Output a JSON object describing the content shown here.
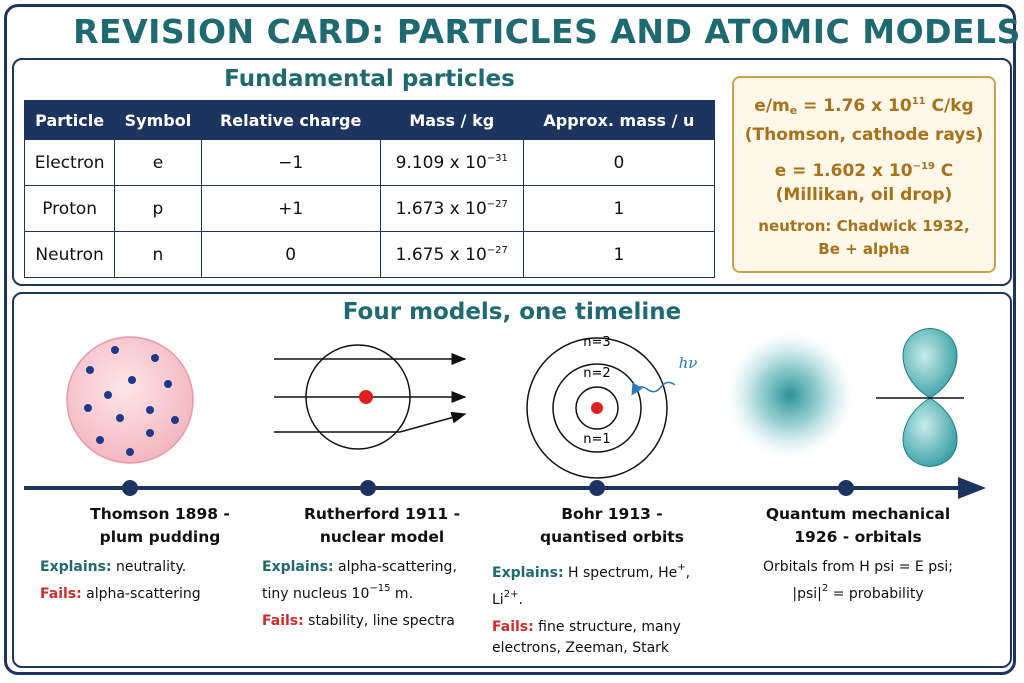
{
  "header": {
    "title": "REVISION CARD: PARTICLES AND ATOMIC MODELS"
  },
  "particles": {
    "title": "Fundamental particles",
    "table": {
      "headers": [
        "Particle",
        "Symbol",
        "Relative charge",
        "Mass / kg",
        "Approx. mass / u"
      ],
      "rows": [
        [
          "Electron",
          "e",
          "−1",
          [
            {
              "text": "9.109 x 10"
            },
            {
              "sup": "−31"
            }
          ],
          "0"
        ],
        [
          "Proton",
          "p",
          "+1",
          [
            {
              "text": "1.673 x 10"
            },
            {
              "sup": "−27"
            }
          ],
          "1"
        ],
        [
          "Neutron",
          "n",
          "0",
          [
            {
              "text": "1.675 x 10"
            },
            {
              "sup": "−27"
            }
          ],
          "1"
        ]
      ]
    }
  },
  "constants": [
    [
      {
        "text": "e/m"
      },
      {
        "sub": "e"
      },
      {
        "text": " = 1.76 x 10"
      },
      {
        "sup": "11"
      },
      {
        "text": " C/kg"
      }
    ],
    [
      {
        "text": "(Thomson, cathode rays)"
      }
    ],
    [
      {
        "text": "e = 1.602 x 10"
      },
      {
        "sup": "−19"
      },
      {
        "text": " C"
      }
    ],
    [
      {
        "text": "(Millikan, oil drop)"
      }
    ],
    [
      {
        "text": "neutron: Chadwick 1932,"
      }
    ],
    [
      {
        "text": "Be + alpha"
      }
    ]
  ],
  "timeline": {
    "title": "Four models, one timeline",
    "diagram_labels": {
      "bohr": [
        "n=3",
        "n=2",
        "n=1"
      ],
      "photon": "hν"
    },
    "models": [
      {
        "title": [
          "Thomson 1898 -",
          "plum pudding"
        ],
        "notes": [
          {
            "label": "Explains:",
            "lines": [
              [
                {
                  "text": " neutrality."
                }
              ]
            ]
          },
          {
            "label": "Fails:",
            "lines": [
              [
                {
                  "text": " alpha-scattering"
                }
              ]
            ]
          }
        ]
      },
      {
        "title": [
          "Rutherford 1911 -",
          "nuclear model"
        ],
        "notes": [
          {
            "label": "Explains:",
            "lines": [
              [
                {
                  "text": " alpha-scattering,"
                }
              ],
              [
                {
                  "text": "tiny nucleus 10"
                },
                {
                  "sup": "−15"
                },
                {
                  "text": " m."
                }
              ]
            ]
          },
          {
            "label": "Fails:",
            "lines": [
              [
                {
                  "text": " stability, line spectra"
                }
              ]
            ]
          }
        ]
      },
      {
        "title": [
          "Bohr 1913 -",
          "quantised orbits"
        ],
        "notes": [
          {
            "label": "Explains:",
            "lines": [
              [
                {
                  "text": " H spectrum, He"
                },
                {
                  "sup": "+"
                },
                {
                  "text": ","
                }
              ],
              [
                {
                  "text": "Li"
                },
                {
                  "sup": "2+"
                },
                {
                  "text": "."
                }
              ]
            ]
          },
          {
            "label": "Fails:",
            "lines": [
              [
                {
                  "text": " fine structure, many"
                }
              ],
              [
                {
                  "text": "electrons, Zeeman, Stark"
                }
              ]
            ]
          }
        ]
      },
      {
        "title": [
          "Quantum mechanical",
          "1926 - orbitals"
        ],
        "notes": [
          {
            "lines": [
              [
                {
                  "text": "Orbitals from H psi = E psi;"
                }
              ],
              [
                {
                  "text": "|psi|"
                },
                {
                  "sup": "2"
                },
                {
                  "text": " = probability"
                }
              ]
            ]
          }
        ]
      }
    ]
  }
}
